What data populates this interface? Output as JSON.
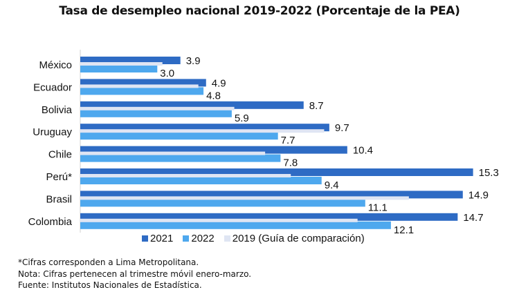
{
  "chart_data": {
    "type": "bar",
    "orientation": "horizontal",
    "title": "Tasa de desempleo nacional 2019-2022 (Porcentaje de la PEA)",
    "categories": [
      "México",
      "Ecuador",
      "Bolivia",
      "Uruguay",
      "Chile",
      "Perú*",
      "Brasil",
      "Colombia"
    ],
    "series": [
      {
        "name": "2021",
        "color": "#2e6bc4",
        "values": [
          3.9,
          4.9,
          8.7,
          9.7,
          10.4,
          15.3,
          14.9,
          14.7
        ],
        "labeled": true
      },
      {
        "name": "2022",
        "color": "#4ea8ee",
        "values": [
          3.0,
          4.8,
          5.9,
          7.7,
          7.8,
          9.4,
          11.1,
          12.1
        ],
        "labeled": true
      },
      {
        "name": "2019 (Guía de comparación)",
        "color": "#dfe5f3",
        "values": [
          3.2,
          4.6,
          6.0,
          9.5,
          7.2,
          8.2,
          12.8,
          10.8
        ],
        "labeled": false
      }
    ],
    "xlim": [
      0,
      16
    ],
    "grid": false,
    "legend": "bottom"
  },
  "notes": [
    "*Cifras corresponden a Lima Metropolitana.",
    "Nota: Cifras pertenecen al trimestre móvil enero-marzo.",
    "Fuente: Institutos Nacionales de Estadística."
  ]
}
